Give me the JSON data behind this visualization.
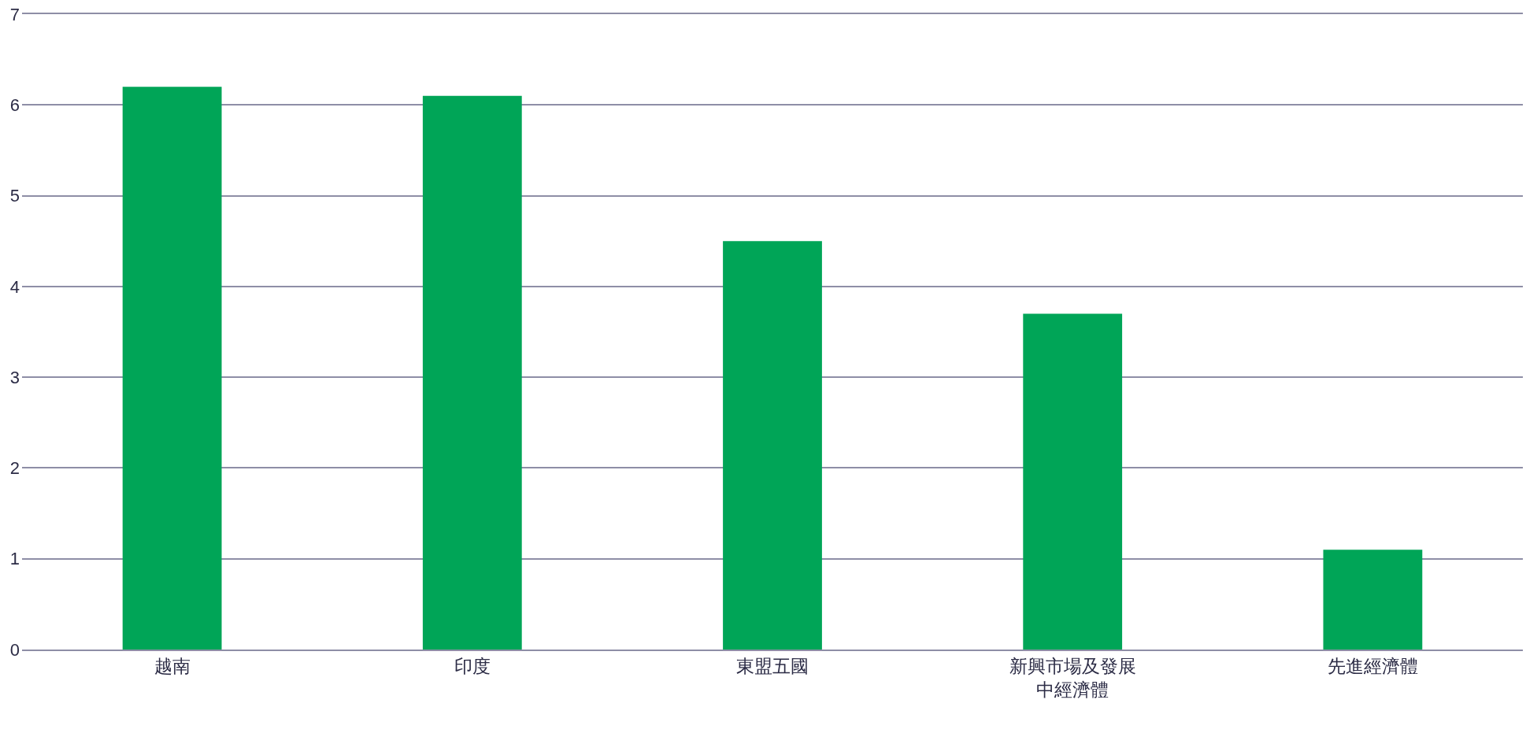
{
  "chart_data": {
    "type": "bar",
    "categories": [
      "越南",
      "印度",
      "東盟五國",
      "新興市場及發展中經濟體",
      "先進經濟體"
    ],
    "values": [
      6.2,
      6.1,
      4.5,
      3.7,
      1.1
    ],
    "color": "#00a557",
    "ylim": [
      0,
      7
    ],
    "yticks": [
      0,
      1,
      2,
      3,
      4,
      5,
      6,
      7
    ],
    "grid": "y"
  }
}
